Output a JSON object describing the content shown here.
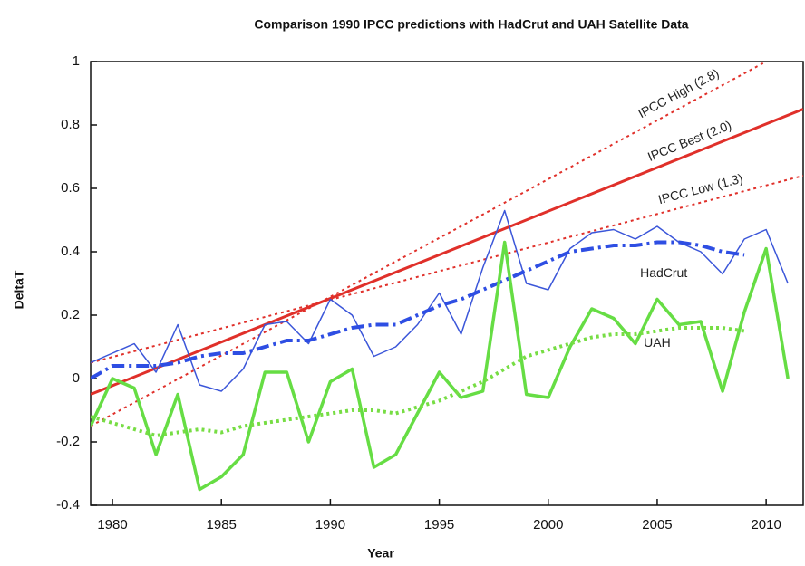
{
  "chart_data": {
    "type": "line",
    "title": "Comparison 1990 IPCC predictions with  HadCrut and UAH Satellite Data",
    "x_label": "Year",
    "y_label": "DeltaT",
    "xlim": [
      1979,
      2011.7
    ],
    "xticks": [
      1980,
      1985,
      1990,
      1995,
      2000,
      2005,
      2010
    ],
    "ylim": [
      -0.4,
      1
    ],
    "yticks": [
      -0.4,
      -0.2,
      0,
      0.2,
      0.4,
      0.6,
      0.8,
      1
    ],
    "grid": false,
    "series": [
      {
        "name": "IPCC High (2.8)",
        "color": "#e0302a",
        "style": "dotted",
        "line_width": 2,
        "x": [
          1979,
          2010
        ],
        "values": [
          -0.15,
          1.0
        ]
      },
      {
        "name": "IPCC Best (2.0)",
        "color": "#e0302a",
        "style": "solid",
        "line_width": 3,
        "x": [
          1979,
          2011.7
        ],
        "values": [
          -0.05,
          0.85
        ]
      },
      {
        "name": "IPCC Low (1.3)",
        "color": "#e0302a",
        "style": "dotted",
        "line_width": 2,
        "x": [
          1979,
          2011.7
        ],
        "values": [
          0.05,
          0.64
        ]
      },
      {
        "name": "HadCrut",
        "color": "#3b56d9",
        "style": "solid",
        "line_width": 1.5,
        "x": [
          1979,
          1980,
          1981,
          1982,
          1983,
          1984,
          1985,
          1986,
          1987,
          1988,
          1989,
          1990,
          1991,
          1992,
          1993,
          1994,
          1995,
          1996,
          1997,
          1998,
          1999,
          2000,
          2001,
          2002,
          2003,
          2004,
          2005,
          2006,
          2007,
          2008,
          2009,
          2010,
          2011
        ],
        "values": [
          0.05,
          0.08,
          0.11,
          0.02,
          0.17,
          -0.02,
          -0.04,
          0.03,
          0.17,
          0.18,
          0.11,
          0.25,
          0.2,
          0.07,
          0.1,
          0.17,
          0.27,
          0.14,
          0.35,
          0.53,
          0.3,
          0.28,
          0.41,
          0.46,
          0.47,
          0.44,
          0.48,
          0.43,
          0.4,
          0.33,
          0.44,
          0.47,
          0.3
        ]
      },
      {
        "color": "#2e4ee3",
        "style": "dashdot",
        "line_width": 4,
        "x": [
          1979,
          1980,
          1981,
          1982,
          1983,
          1984,
          1985,
          1986,
          1987,
          1988,
          1989,
          1990,
          1991,
          1992,
          1993,
          1994,
          1995,
          1996,
          1997,
          1998,
          1999,
          2000,
          2001,
          2002,
          2003,
          2004,
          2005,
          2006,
          2007,
          2008,
          2009
        ],
        "values": [
          0.0,
          0.04,
          0.04,
          0.04,
          0.05,
          0.07,
          0.08,
          0.08,
          0.1,
          0.12,
          0.12,
          0.14,
          0.16,
          0.17,
          0.17,
          0.2,
          0.23,
          0.25,
          0.28,
          0.31,
          0.34,
          0.37,
          0.4,
          0.41,
          0.42,
          0.42,
          0.43,
          0.43,
          0.42,
          0.4,
          0.39
        ]
      },
      {
        "name": "UAH",
        "color": "#66dd44",
        "style": "solid",
        "line_width": 3.5,
        "x": [
          1979,
          1980,
          1981,
          1982,
          1983,
          1984,
          1985,
          1986,
          1987,
          1988,
          1989,
          1990,
          1991,
          1992,
          1993,
          1994,
          1995,
          1996,
          1997,
          1998,
          1999,
          2000,
          2001,
          2002,
          2003,
          2004,
          2005,
          2006,
          2007,
          2008,
          2009,
          2010,
          2011
        ],
        "values": [
          -0.15,
          0.0,
          -0.03,
          -0.24,
          -0.05,
          -0.35,
          -0.31,
          -0.24,
          0.02,
          0.02,
          -0.2,
          -0.01,
          0.03,
          -0.28,
          -0.24,
          -0.11,
          0.02,
          -0.06,
          -0.04,
          0.43,
          -0.05,
          -0.06,
          0.1,
          0.22,
          0.19,
          0.11,
          0.25,
          0.17,
          0.18,
          -0.04,
          0.21,
          0.41,
          0.0
        ]
      },
      {
        "color": "#77dd44",
        "style": "dotted",
        "line_width": 4,
        "x": [
          1979,
          1980,
          1981,
          1982,
          1983,
          1984,
          1985,
          1986,
          1987,
          1988,
          1989,
          1990,
          1991,
          1992,
          1993,
          1994,
          1995,
          1996,
          1997,
          1998,
          1999,
          2000,
          2001,
          2002,
          2003,
          2004,
          2005,
          2006,
          2007,
          2008,
          2009
        ],
        "values": [
          -0.12,
          -0.14,
          -0.16,
          -0.18,
          -0.17,
          -0.16,
          -0.17,
          -0.15,
          -0.14,
          -0.13,
          -0.12,
          -0.11,
          -0.1,
          -0.1,
          -0.11,
          -0.09,
          -0.07,
          -0.04,
          -0.01,
          0.03,
          0.07,
          0.09,
          0.11,
          0.13,
          0.14,
          0.14,
          0.15,
          0.16,
          0.16,
          0.16,
          0.15
        ]
      }
    ]
  }
}
